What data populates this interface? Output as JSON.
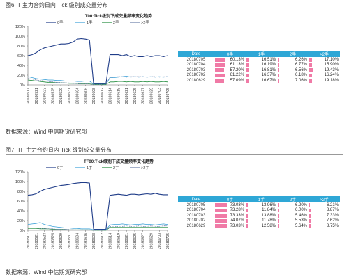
{
  "figures": [
    {
      "caption": "图6: T 主力合约日内 Tick 级别成交量分布",
      "source": "数据来源：Wind    中信期货研究部",
      "chart_data": {
        "type": "line",
        "title": "T00:Tick级别下成交量频率变化趋势",
        "legend": [
          "0手",
          "1手",
          "2手",
          ">2手"
        ],
        "colors": [
          "#1f3c88",
          "#3aa0d8",
          "#1f8a3a",
          "#6b7fa8"
        ],
        "ylim": [
          0,
          1.2
        ],
        "yticks": [
          "0%",
          "20%",
          "40%",
          "60%",
          "80%",
          "100%",
          "120%"
        ],
        "x_tick_labels": [
          "20180517",
          "20180521",
          "20180523",
          "20180525",
          "20180529",
          "20180531",
          "20180604",
          "20180606",
          "20180608",
          "20180612",
          "20180614",
          "20180619",
          "20180621",
          "20180625",
          "20180627",
          "20180629",
          "20180703",
          "20180705"
        ],
        "n_points": 35,
        "series": [
          {
            "name": "0手",
            "values": [
              0.6,
              0.62,
              0.66,
              0.72,
              0.76,
              0.78,
              0.8,
              0.82,
              0.84,
              0.84,
              0.85,
              0.88,
              0.94,
              0.95,
              0.94,
              0.92,
              0.02,
              0.02,
              0.02,
              0.02,
              0.62,
              0.62,
              0.62,
              0.6,
              0.62,
              0.58,
              0.6,
              0.58,
              0.58,
              0.6,
              0.58,
              0.6,
              0.6,
              0.58,
              0.6
            ]
          },
          {
            "name": "1手",
            "values": [
              0.17,
              0.15,
              0.13,
              0.12,
              0.11,
              0.1,
              0.1,
              0.09,
              0.09,
              0.08,
              0.08,
              0.08,
              0.07,
              0.07,
              0.08,
              0.08,
              0.01,
              0.01,
              0.01,
              0.01,
              0.15,
              0.15,
              0.16,
              0.17,
              0.18,
              0.16,
              0.17,
              0.16,
              0.17,
              0.16,
              0.17,
              0.16,
              0.17,
              0.16,
              0.17
            ]
          },
          {
            "name": "2手",
            "values": [
              0.1,
              0.09,
              0.08,
              0.07,
              0.06,
              0.05,
              0.05,
              0.04,
              0.04,
              0.04,
              0.03,
              0.03,
              0.03,
              0.02,
              0.02,
              0.02,
              0.01,
              0.01,
              0.01,
              0.01,
              0.06,
              0.06,
              0.07,
              0.07,
              0.06,
              0.07,
              0.06,
              0.06,
              0.07,
              0.06,
              0.07,
              0.06,
              0.06,
              0.07,
              0.06
            ]
          },
          {
            "name": ">2手",
            "values": [
              0.13,
              0.12,
              0.1,
              0.09,
              0.08,
              0.07,
              0.06,
              0.05,
              0.05,
              0.04,
              0.04,
              0.03,
              0.02,
              0.02,
              0.02,
              0.02,
              0.01,
              0.01,
              0.01,
              0.01,
              0.16,
              0.16,
              0.17,
              0.17,
              0.16,
              0.17,
              0.17,
              0.17,
              0.17,
              0.16,
              0.17,
              0.17,
              0.16,
              0.17,
              0.17
            ]
          }
        ]
      },
      "table": {
        "headers": [
          "Date",
          "0手",
          "1手",
          "2手",
          ">2手"
        ],
        "rows": [
          {
            "date": "20180705",
            "v0": "60.13%",
            "v1": "16.51%",
            "v2": "6.26%",
            "v3": "17.10%"
          },
          {
            "date": "20180704",
            "v0": "61.13%",
            "v1": "16.19%",
            "v2": "6.77%",
            "v3": "15.90%"
          },
          {
            "date": "20180703",
            "v0": "57.20%",
            "v1": "16.81%",
            "v2": "6.56%",
            "v3": "19.43%"
          },
          {
            "date": "20180702",
            "v0": "61.22%",
            "v1": "16.37%",
            "v2": "6.18%",
            "v3": "16.24%"
          },
          {
            "date": "20180629",
            "v0": "57.09%",
            "v1": "16.67%",
            "v2": "7.06%",
            "v3": "19.18%"
          }
        ]
      }
    },
    {
      "caption": "图7: TF 主力合约日内 Tick 级别成交量分布",
      "source": "数据来源：Wind    中信期货研究部",
      "chart_data": {
        "type": "line",
        "title": "TF00:Tick级别下成交量频率变化趋势",
        "legend": [
          "0手",
          "1手",
          "2手",
          ">2手"
        ],
        "colors": [
          "#1f3c88",
          "#3aa0d8",
          "#1f8a3a",
          "#6b7fa8"
        ],
        "ylim": [
          0,
          1.2
        ],
        "yticks": [
          "0%",
          "20%",
          "40%",
          "60%",
          "80%",
          "100%",
          "120%"
        ],
        "x_tick_labels": [
          "20180517",
          "20180521",
          "20180523",
          "20180525",
          "20180529",
          "20180531",
          "20180604",
          "20180606",
          "20180608",
          "20180612",
          "20180614",
          "20180619",
          "20180621",
          "20180625",
          "20180627",
          "20180629",
          "20180703",
          "20180705"
        ],
        "n_points": 35,
        "series": [
          {
            "name": "0手",
            "values": [
              0.72,
              0.73,
              0.75,
              0.8,
              0.84,
              0.86,
              0.88,
              0.9,
              0.92,
              0.93,
              0.94,
              0.96,
              0.97,
              0.98,
              0.98,
              0.97,
              0.02,
              0.02,
              0.02,
              0.02,
              0.72,
              0.73,
              0.74,
              0.73,
              0.72,
              0.74,
              0.74,
              0.73,
              0.74,
              0.75,
              0.74,
              0.76,
              0.74,
              0.73,
              0.73
            ]
          },
          {
            "name": "1手",
            "values": [
              0.12,
              0.13,
              0.14,
              0.16,
              0.12,
              0.1,
              0.08,
              0.07,
              0.06,
              0.05,
              0.05,
              0.04,
              0.04,
              0.03,
              0.03,
              0.03,
              0.01,
              0.01,
              0.01,
              0.01,
              0.11,
              0.12,
              0.12,
              0.13,
              0.12,
              0.11,
              0.12,
              0.12,
              0.13,
              0.12,
              0.12,
              0.11,
              0.12,
              0.13,
              0.12
            ]
          },
          {
            "name": "2手",
            "values": [
              0.04,
              0.04,
              0.04,
              0.03,
              0.03,
              0.03,
              0.02,
              0.02,
              0.02,
              0.02,
              0.01,
              0.01,
              0.01,
              0.01,
              0.01,
              0.01,
              0.0,
              0.0,
              0.0,
              0.0,
              0.06,
              0.06,
              0.06,
              0.06,
              0.06,
              0.06,
              0.06,
              0.06,
              0.06,
              0.06,
              0.06,
              0.06,
              0.06,
              0.06,
              0.06
            ]
          },
          {
            "name": ">2手",
            "values": [
              0.05,
              0.05,
              0.05,
              0.04,
              0.04,
              0.03,
              0.03,
              0.02,
              0.02,
              0.02,
              0.02,
              0.01,
              0.01,
              0.01,
              0.01,
              0.01,
              0.0,
              0.0,
              0.0,
              0.0,
              0.08,
              0.08,
              0.08,
              0.08,
              0.09,
              0.08,
              0.08,
              0.09,
              0.08,
              0.08,
              0.09,
              0.08,
              0.08,
              0.09,
              0.09
            ]
          }
        ]
      },
      "table": {
        "headers": [
          "Date",
          "0手",
          "1手",
          "2手",
          ">2手"
        ],
        "rows": [
          {
            "date": "20180705",
            "v0": "73.03%",
            "v1": "13.96%",
            "v2": "6.20%",
            "v3": "6.21%"
          },
          {
            "date": "20180704",
            "v0": "73.28%",
            "v1": "11.84%",
            "v2": "6.00%",
            "v3": "8.87%"
          },
          {
            "date": "20180703",
            "v0": "73.33%",
            "v1": "13.88%",
            "v2": "5.46%",
            "v3": "7.33%"
          },
          {
            "date": "20180702",
            "v0": "74.07%",
            "v1": "11.78%",
            "v2": "5.53%",
            "v3": "7.62%"
          },
          {
            "date": "20180629",
            "v0": "73.03%",
            "v1": "12.58%",
            "v2": "5.64%",
            "v3": "8.75%"
          }
        ]
      }
    }
  ]
}
